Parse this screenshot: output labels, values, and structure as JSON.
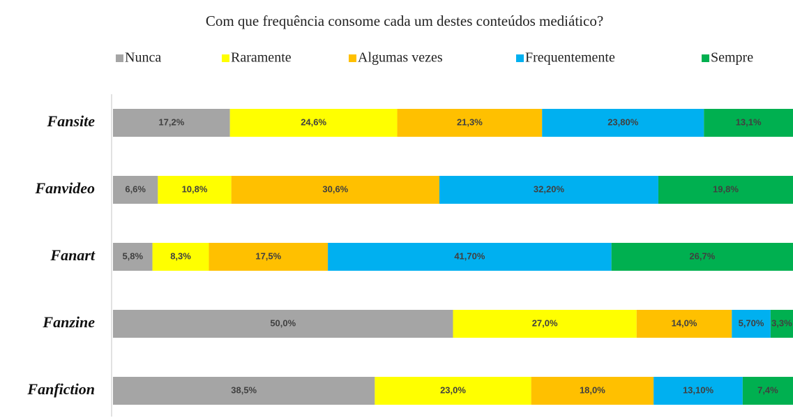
{
  "chart_data": {
    "type": "stacked_bar_horizontal",
    "title": "Com que frequência consome cada um destes conteúdos mediático?",
    "categories": [
      "Fansite",
      "Fanvideo",
      "Fanart",
      "Fanzine",
      "Fanfiction"
    ],
    "xlim": [
      0,
      100
    ],
    "series": [
      {
        "name": "Nunca",
        "color": "#a5a5a5",
        "values": [
          17.2,
          6.6,
          5.8,
          50.0,
          38.5
        ],
        "value_labels": [
          "17,2%",
          "6,6%",
          "5,8%",
          "50,0%",
          "38,5%"
        ]
      },
      {
        "name": "Raramente",
        "color": "#ffff00",
        "values": [
          24.6,
          10.8,
          8.3,
          27.0,
          23.0
        ],
        "value_labels": [
          "24,6%",
          "10,8%",
          "8,3%",
          "27,0%",
          "23,0%"
        ]
      },
      {
        "name": "Algumas vezes",
        "color": "#ffc000",
        "values": [
          21.3,
          30.6,
          17.5,
          14.0,
          18.0
        ],
        "value_labels": [
          "21,3%",
          "30,6%",
          "17,5%",
          "14,0%",
          "18,0%"
        ]
      },
      {
        "name": "Frequentemente",
        "color": "#00b0f0",
        "values": [
          23.8,
          32.2,
          41.7,
          5.7,
          13.1
        ],
        "value_labels": [
          "23,80%",
          "32,20%",
          "41,70%",
          "5,70%",
          "13,10%"
        ]
      },
      {
        "name": "Sempre",
        "color": "#00b050",
        "values": [
          13.1,
          19.8,
          26.7,
          3.3,
          7.4
        ],
        "value_labels": [
          "13,1%",
          "19,8%",
          "26,7%",
          "3,3%",
          "7,4%"
        ]
      }
    ]
  }
}
